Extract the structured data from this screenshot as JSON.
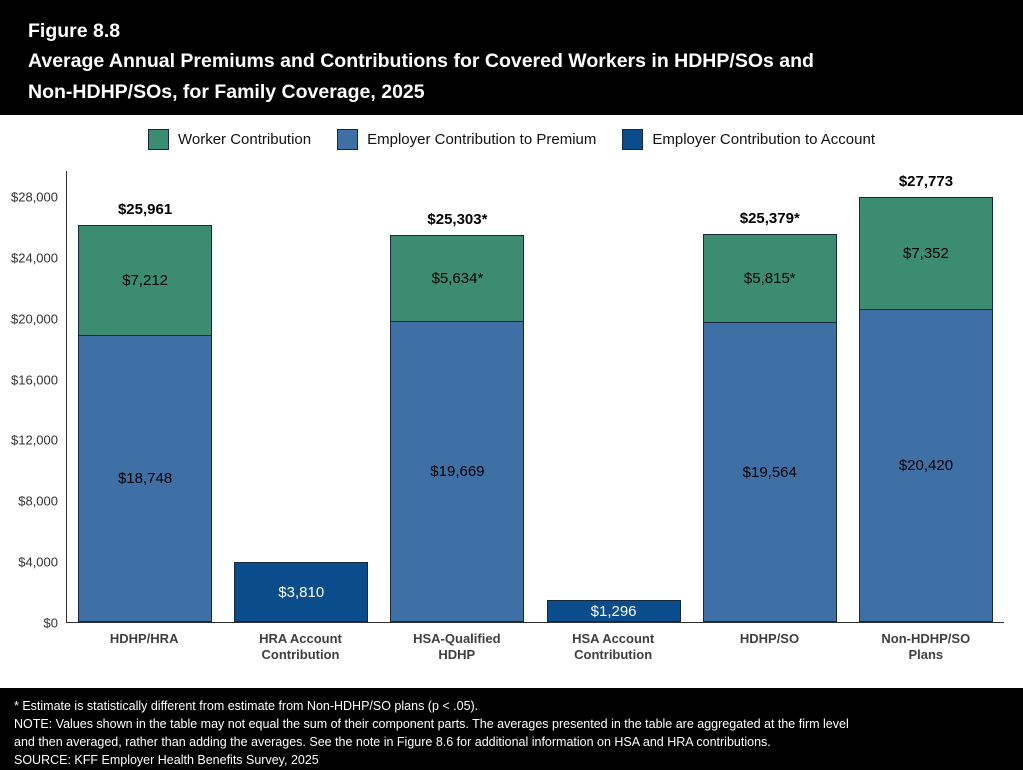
{
  "figure": {
    "label": "Figure 8.8",
    "title_line1": "Average Annual Premiums and Contributions for Covered Workers in HDHP/SOs and",
    "title_line2": "Non-HDHP/SOs, for Family Coverage, 2025"
  },
  "colors": {
    "worker": {
      "fill": "#3b8c70",
      "text": "#000000"
    },
    "premium": {
      "fill": "#3e6fa5",
      "text": "#000000"
    },
    "account": {
      "fill": "#0b4d8c",
      "text": "#ffffff"
    },
    "bar_border": "#16283c",
    "axis": "#2e2e2e",
    "header_bg": "#000000",
    "card_bg": "#ffffff"
  },
  "legend": [
    {
      "label": "Worker Contribution",
      "color_key": "worker"
    },
    {
      "label": "Employer Contribution to Premium",
      "color_key": "premium"
    },
    {
      "label": "Employer Contribution to Account",
      "color_key": "account"
    }
  ],
  "chart_data": {
    "type": "bar",
    "stacked": true,
    "title": "Average Annual Premiums and Contributions for Covered Workers in HDHP/SOs and Non-HDHP/SOs, for Family Coverage, 2025",
    "xlabel": "",
    "ylabel": "",
    "ylim": [
      0,
      28000
    ],
    "grid": false,
    "legend_position": "top",
    "yticks": [
      {
        "value": 0,
        "label": "$0"
      },
      {
        "value": 4000,
        "label": "$4,000"
      },
      {
        "value": 8000,
        "label": "$8,000"
      },
      {
        "value": 12000,
        "label": "$12,000"
      },
      {
        "value": 16000,
        "label": "$16,000"
      },
      {
        "value": 20000,
        "label": "$20,000"
      },
      {
        "value": 24000,
        "label": "$24,000"
      },
      {
        "value": 28000,
        "label": "$28,000"
      }
    ],
    "categories": [
      "HDHP/HRA",
      "HRA Account\nContribution",
      "HSA-Qualified\nHDHP",
      "HSA Account\nContribution",
      "HDHP/SO",
      "Non-HDHP/SO\nPlans"
    ],
    "bars": [
      {
        "category": "HDHP/HRA",
        "total": 25961,
        "total_label": "$25,961",
        "segments": [
          {
            "series": "Employer Contribution to Premium",
            "color_key": "premium",
            "value": 18748,
            "label": "$18,748"
          },
          {
            "series": "Worker Contribution",
            "color_key": "worker",
            "value": 7212,
            "label": "$7,212"
          }
        ]
      },
      {
        "category": "HRA Account\nContribution",
        "total": 3810,
        "total_label": "",
        "segments": [
          {
            "series": "Employer Contribution to Account",
            "color_key": "account",
            "value": 3810,
            "label": "$3,810"
          }
        ]
      },
      {
        "category": "HSA-Qualified\nHDHP",
        "total": 25303,
        "total_label": "$25,303*",
        "segments": [
          {
            "series": "Employer Contribution to Premium",
            "color_key": "premium",
            "value": 19669,
            "label": "$19,669"
          },
          {
            "series": "Worker Contribution",
            "color_key": "worker",
            "value": 5634,
            "label": "$5,634*"
          }
        ]
      },
      {
        "category": "HSA Account\nContribution",
        "total": 1296,
        "total_label": "",
        "segments": [
          {
            "series": "Employer Contribution to Account",
            "color_key": "account",
            "value": 1296,
            "label": "$1,296"
          }
        ]
      },
      {
        "category": "HDHP/SO",
        "total": 25379,
        "total_label": "$25,379*",
        "segments": [
          {
            "series": "Employer Contribution to Premium",
            "color_key": "premium",
            "value": 19564,
            "label": "$19,564"
          },
          {
            "series": "Worker Contribution",
            "color_key": "worker",
            "value": 5815,
            "label": "$5,815*"
          }
        ]
      },
      {
        "category": "Non-HDHP/SO\nPlans",
        "total": 27773,
        "total_label": "$27,773",
        "segments": [
          {
            "series": "Employer Contribution to Premium",
            "color_key": "premium",
            "value": 20420,
            "label": "$20,420"
          },
          {
            "series": "Worker Contribution",
            "color_key": "worker",
            "value": 7352,
            "label": "$7,352"
          }
        ]
      }
    ]
  },
  "footnotes": [
    "* Estimate is statistically different from estimate from Non-HDHP/SO plans (p < .05).",
    "NOTE: Values shown in the table may not equal the sum of their component parts. The averages presented in the table are aggregated at the firm level",
    "and then averaged, rather than adding the averages. See the note in Figure 8.6 for additional information on HSA and HRA contributions.",
    "SOURCE: KFF Employer Health Benefits Survey, 2025"
  ]
}
